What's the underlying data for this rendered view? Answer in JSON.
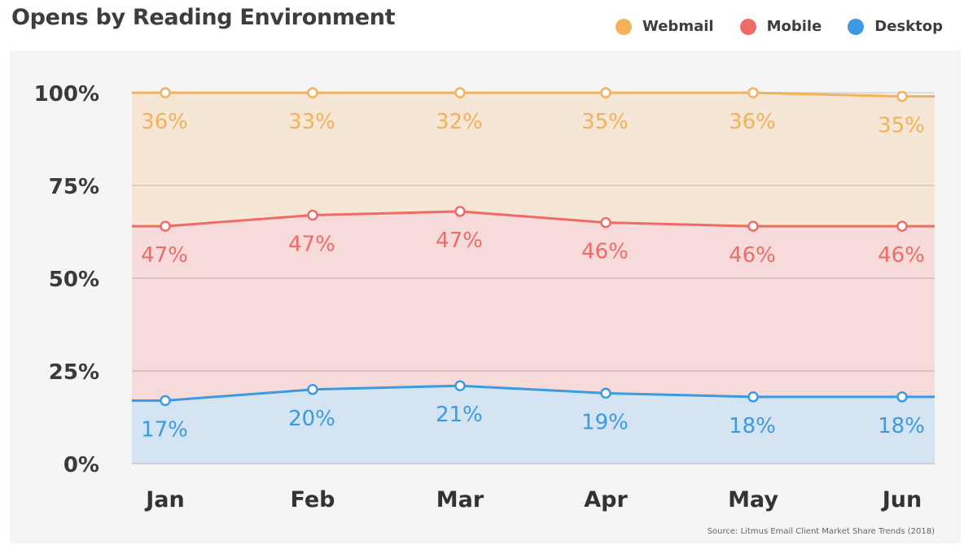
{
  "title": "Opens by Reading Environment",
  "source": "Source: Litmus Email Client Market Share Trends (2018)",
  "chart_data": {
    "type": "area",
    "stacked": true,
    "categories": [
      "Jan",
      "Feb",
      "Mar",
      "Apr",
      "May",
      "Jun"
    ],
    "y_ticks": [
      "100%",
      "75%",
      "50%",
      "25%",
      "0%"
    ],
    "ylim": [
      0,
      100
    ],
    "legend_position": "top-right",
    "grid": true,
    "series": [
      {
        "name": "Desktop",
        "color": "#3b9ae1",
        "fill": "#d4e4f3",
        "values": [
          17,
          20,
          21,
          19,
          18,
          18
        ],
        "labels": [
          "17%",
          "20%",
          "21%",
          "19%",
          "18%",
          "18%"
        ]
      },
      {
        "name": "Mobile",
        "color": "#f06b66",
        "fill": "#f7dada",
        "values": [
          47,
          47,
          47,
          46,
          46,
          46
        ],
        "labels": [
          "47%",
          "47%",
          "47%",
          "46%",
          "46%",
          "46%"
        ]
      },
      {
        "name": "Webmail",
        "color": "#f2b15a",
        "fill": "#f6e6d5",
        "values": [
          36,
          33,
          32,
          35,
          36,
          35
        ],
        "labels": [
          "36%",
          "33%",
          "32%",
          "35%",
          "36%",
          "35%"
        ]
      }
    ],
    "legend_order": [
      "Webmail",
      "Mobile",
      "Desktop"
    ]
  }
}
